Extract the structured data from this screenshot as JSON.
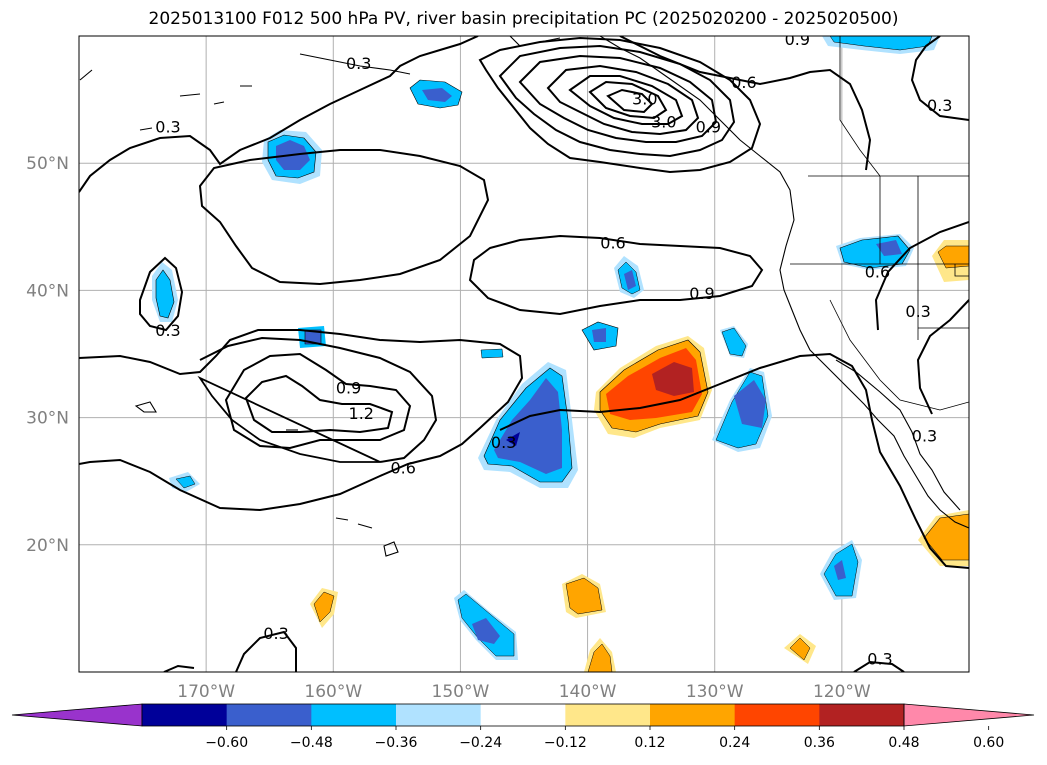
{
  "title": "2025013100 F012 500 hPa PV, river basin precipitation PC (2025020200 - 2025020500)",
  "map": {
    "lon_range": [
      -180,
      -110
    ],
    "lat_range": [
      10,
      60
    ],
    "lat_ticks": [
      {
        "value": 50,
        "label": "50°N"
      },
      {
        "value": 40,
        "label": "40°N"
      },
      {
        "value": 30,
        "label": "30°N"
      },
      {
        "value": 20,
        "label": "20°N"
      }
    ],
    "lon_ticks": [
      {
        "value": -170,
        "label": "170°W"
      },
      {
        "value": -160,
        "label": "160°W"
      },
      {
        "value": -150,
        "label": "150°W"
      },
      {
        "value": -140,
        "label": "140°W"
      },
      {
        "value": -130,
        "label": "130°W"
      },
      {
        "value": -120,
        "label": "120°W"
      }
    ],
    "grid": true,
    "contour_labels": [
      {
        "text": "0.3",
        "lon": -158,
        "lat": 57.8
      },
      {
        "text": "0.3",
        "lon": -173,
        "lat": 52.8
      },
      {
        "text": "0.3",
        "lon": -173,
        "lat": 36.8
      },
      {
        "text": "0.3",
        "lon": -164.5,
        "lat": 13.0
      },
      {
        "text": "0.3",
        "lon": -117,
        "lat": 11.0
      },
      {
        "text": "0.3",
        "lon": -112.3,
        "lat": 54.5
      },
      {
        "text": "0.3",
        "lon": -114,
        "lat": 38.3
      },
      {
        "text": "0.3",
        "lon": -113.5,
        "lat": 28.5
      },
      {
        "text": "0.3",
        "lon": -146.6,
        "lat": 28.0
      },
      {
        "text": "0.6",
        "lon": -154.5,
        "lat": 26.0
      },
      {
        "text": "0.9",
        "lon": -158.8,
        "lat": 32.3
      },
      {
        "text": "1.2",
        "lon": -157.8,
        "lat": 30.3
      },
      {
        "text": "0.6",
        "lon": -138,
        "lat": 43.7
      },
      {
        "text": "0.9",
        "lon": -131,
        "lat": 39.7
      },
      {
        "text": "0.6",
        "lon": -117.2,
        "lat": 41.4
      },
      {
        "text": "0.9",
        "lon": -123.5,
        "lat": 59.7
      },
      {
        "text": "0.6",
        "lon": -127.7,
        "lat": 56.3
      },
      {
        "text": "0.9",
        "lon": -130.5,
        "lat": 52.8
      },
      {
        "text": "3.0",
        "lon": -135.5,
        "lat": 55.0
      },
      {
        "text": "3.0",
        "lon": -134,
        "lat": 53.2
      }
    ]
  },
  "colorbar": {
    "colors": [
      "#9933cc",
      "#000099",
      "#3a5fcd",
      "#00bfff",
      "#b0e2ff",
      "#ffffff",
      "#ffe78a",
      "#ffa500",
      "#ff4500",
      "#b22222",
      "#ff88aa"
    ],
    "tick_labels": [
      "−0.60",
      "−0.48",
      "−0.36",
      "−0.24",
      "−0.12",
      "0.12",
      "0.24",
      "0.36",
      "0.48",
      "0.60"
    ]
  }
}
